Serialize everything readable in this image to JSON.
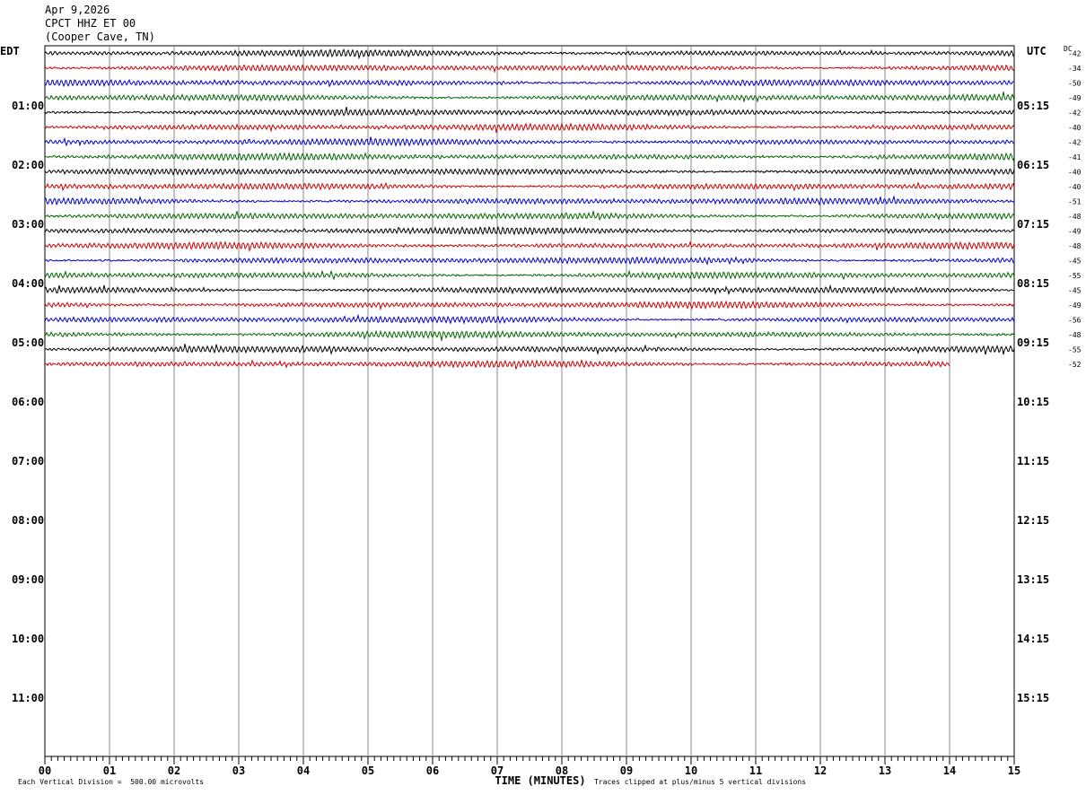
{
  "header": {
    "date": "Apr 9,2026",
    "station": "CPCT HHZ ET 00",
    "location": "(Cooper Cave, TN)"
  },
  "chart_data": {
    "type": "line",
    "left_tz": "EDT",
    "right_tz": "UTC",
    "dc_label": "DC",
    "xlabel": "TIME (MINUTES)",
    "xlim": [
      0,
      15
    ],
    "x_ticks": [
      "00",
      "01",
      "02",
      "03",
      "04",
      "05",
      "06",
      "07",
      "08",
      "09",
      "10",
      "11",
      "12",
      "13",
      "14",
      "15"
    ],
    "left_hour_labels": [
      "01:00",
      "02:00",
      "03:00",
      "04:00",
      "05:00",
      "06:00",
      "07:00",
      "08:00",
      "09:00",
      "10:00",
      "11:00"
    ],
    "right_hour_labels": [
      "05:15",
      "06:15",
      "07:15",
      "08:15",
      "09:15",
      "10:15",
      "11:15",
      "12:15",
      "13:15",
      "14:15",
      "15:15"
    ],
    "row_count": 48,
    "trace_colors": [
      "#000000",
      "#cc0000",
      "#0000cc",
      "#006600"
    ],
    "dc_offsets": [
      -42,
      -34,
      -50,
      -49,
      -42,
      -40,
      -42,
      -41,
      -40,
      -40,
      -51,
      -48,
      -49,
      -48,
      -45,
      -55,
      -45,
      -49,
      -56,
      -48,
      -55,
      -52
    ],
    "traces_complete_rows": 21,
    "last_trace_end_minute": 14,
    "scale_note": "Each Vertical Division =  500.00 microvolts",
    "clip_note": "Traces clipped at plus/minus 5 vertical divisions"
  }
}
